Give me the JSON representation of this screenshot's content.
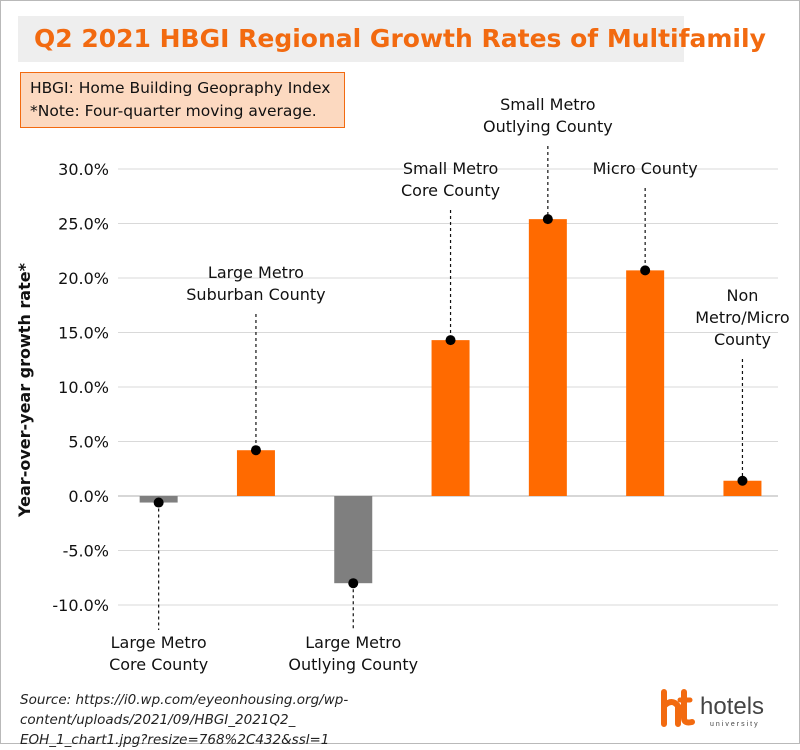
{
  "note": {
    "line1": "HBGI: Home Building Geopraphy Index",
    "line2": "*Note: Four-quarter moving average."
  },
  "source": {
    "line1": "Source: https://i0.wp.com/eyeonhousing.org/wp-content/uploads/2021/09/HBGI_2021Q2_",
    "line2": "EOH_1_chart1.jpg?resize=768%2C432&ssl=1"
  },
  "logo": {
    "word": "hotels",
    "sub": "university"
  },
  "colors": {
    "positive": "#ff6a00",
    "negative": "#7f7f7f",
    "title": "#f26a10",
    "grid": "#d9d9d9"
  },
  "chart_data": {
    "type": "bar",
    "title": "Q2 2021 HBGI Regional Growth Rates of Multifamily",
    "ylabel": "Year-over-year growth rate*",
    "ylim": [
      -12.5,
      32.5
    ],
    "yticks": [
      "30.0%",
      "25.0%",
      "20.0%",
      "15.0%",
      "10.0%",
      "5.0%",
      "0.0%",
      "-5.0%",
      "-10.0%"
    ],
    "ytick_values": [
      30,
      25,
      20,
      15,
      10,
      5,
      0,
      -5,
      -10
    ],
    "grid": true,
    "categories": [
      [
        "Large Metro",
        "Core County"
      ],
      [
        "Large Metro",
        "Suburban County"
      ],
      [
        "Large Metro",
        "Outlying County"
      ],
      [
        "Small Metro",
        "Core County"
      ],
      [
        "Small Metro",
        "Outlying County"
      ],
      [
        "Micro County"
      ],
      [
        "Non",
        "Metro/Micro",
        "County"
      ]
    ],
    "values": [
      -0.6,
      4.2,
      -8.0,
      14.3,
      25.4,
      20.7,
      1.4
    ]
  }
}
